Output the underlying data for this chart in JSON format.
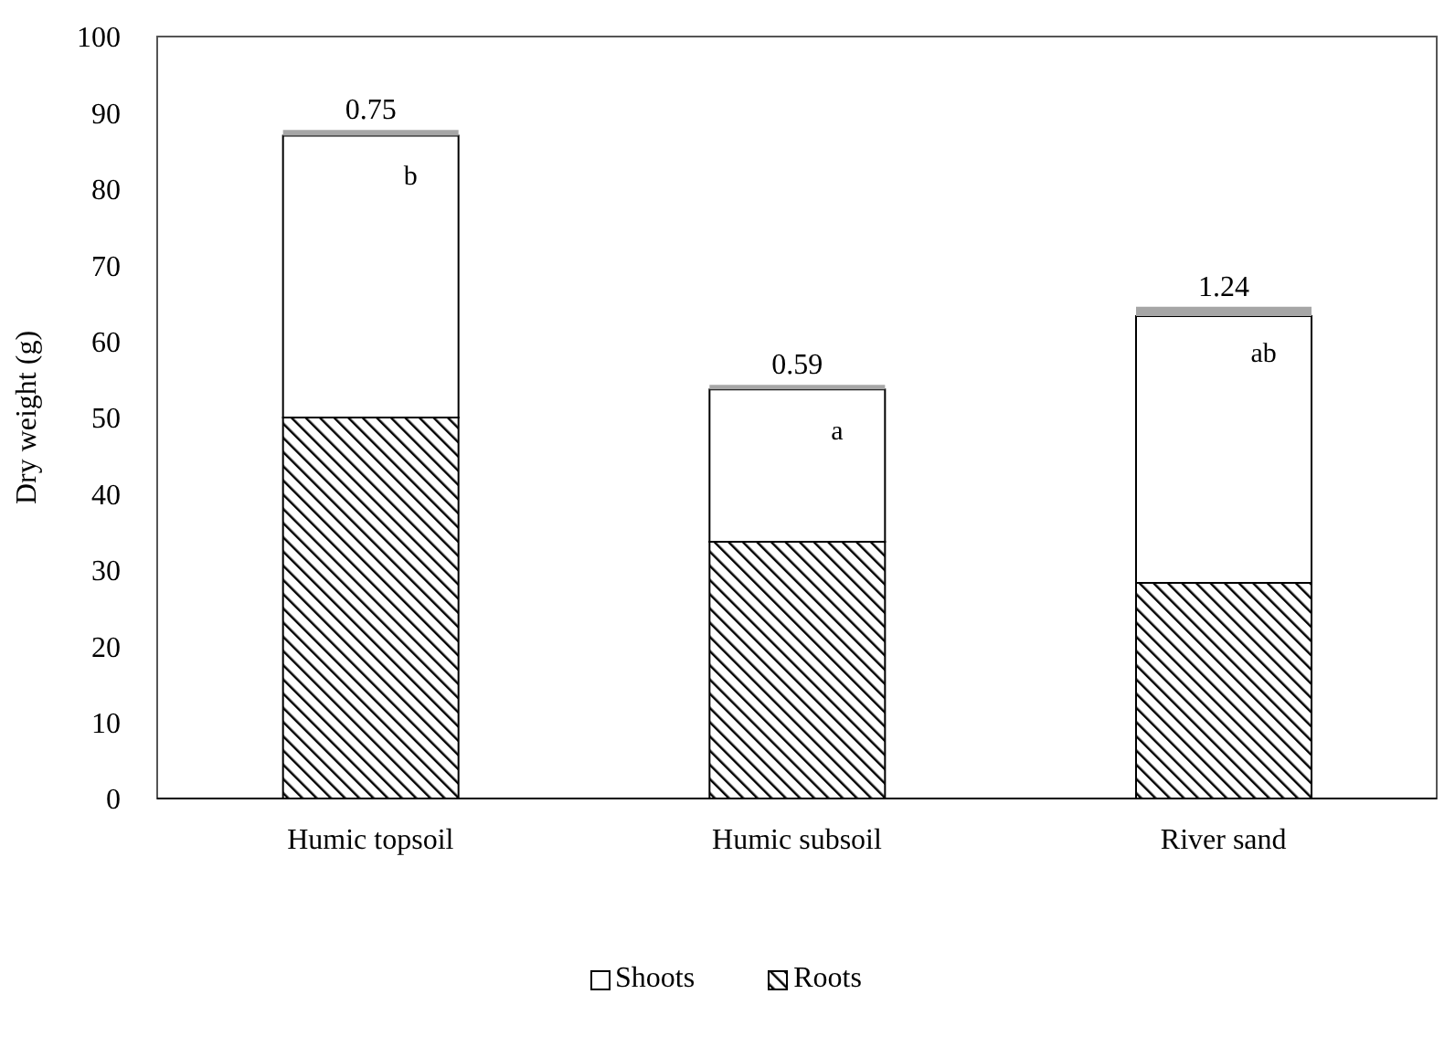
{
  "chart_data": {
    "type": "bar",
    "stacked": true,
    "ylabel": "Dry weight (g)",
    "categories": [
      "Humic topsoil",
      "Humic subsoil",
      "River sand"
    ],
    "series": [
      {
        "name": "Roots",
        "color": "#000000",
        "values": [
          50,
          33.7,
          28.3
        ]
      },
      {
        "name": "Shoots",
        "color": "#ffffff",
        "values": [
          37,
          20,
          35
        ]
      },
      {
        "color": "#a6a6a6",
        "values": [
          0.75,
          0.59,
          1.24
        ],
        "value_labels": [
          "0.75",
          "0.59",
          "1.24"
        ]
      }
    ],
    "ylim": [
      0,
      100
    ],
    "yticks": [
      0,
      10,
      20,
      30,
      40,
      50,
      60,
      70,
      80,
      90,
      100
    ],
    "grid": false,
    "legend": "bottom",
    "annotations": [
      "b",
      "a",
      "ab"
    ]
  }
}
